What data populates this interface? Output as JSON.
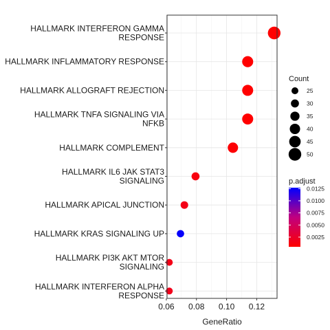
{
  "chart_data": {
    "type": "scatter",
    "xlabel": "GeneRatio",
    "x_ticks": [
      0.06,
      0.08,
      0.1,
      0.12
    ],
    "x_tick_labels": [
      "0.06",
      "0.08",
      "0.10",
      "0.12"
    ],
    "xlim": [
      0.0605,
      0.1335
    ],
    "grid": true,
    "legend_position": "right",
    "points": [
      {
        "term": "HALLMARK INTERFERON GAMMA\nRESPONSE",
        "gene_ratio": 0.1316,
        "count": 50,
        "p_adjust": 0.0005
      },
      {
        "term": "HALLMARK INFLAMMATORY RESPONSE",
        "gene_ratio": 0.114,
        "count": 43,
        "p_adjust": 0.0005
      },
      {
        "term": "HALLMARK ALLOGRAFT REJECTION",
        "gene_ratio": 0.114,
        "count": 43,
        "p_adjust": 0.0005
      },
      {
        "term": "HALLMARK TNFA SIGNALING VIA\nNFKB",
        "gene_ratio": 0.114,
        "count": 43,
        "p_adjust": 0.0005
      },
      {
        "term": "HALLMARK COMPLEMENT",
        "gene_ratio": 0.1042,
        "count": 40,
        "p_adjust": 0.0007
      },
      {
        "term": "HALLMARK IL6 JAK STAT3\nSIGNALING",
        "gene_ratio": 0.0794,
        "count": 30,
        "p_adjust": 0.0012
      },
      {
        "term": "HALLMARK APICAL JUNCTION",
        "gene_ratio": 0.072,
        "count": 28,
        "p_adjust": 0.0016
      },
      {
        "term": "HALLMARK KRAS SIGNALING UP",
        "gene_ratio": 0.0694,
        "count": 27,
        "p_adjust": 0.0125
      },
      {
        "term": "HALLMARK PI3K AKT MTOR\nSIGNALING",
        "gene_ratio": 0.062,
        "count": 24,
        "p_adjust": 0.0016
      },
      {
        "term": "HALLMARK INTERFERON ALPHA\nRESPONSE",
        "gene_ratio": 0.062,
        "count": 24,
        "p_adjust": 0.0018
      }
    ],
    "size_legend": {
      "title": "Count",
      "values": [
        25,
        30,
        35,
        40,
        45,
        50
      ]
    },
    "color_legend": {
      "title": "p.adjust",
      "min": 0.0005,
      "max": 0.0127,
      "ticks": [
        0.0125,
        0.01,
        0.0075,
        0.005,
        0.0025
      ],
      "tick_labels": [
        "0.0125",
        "0.0100",
        "0.0075",
        "0.0050",
        "0.0025"
      ],
      "low_color": "#ff0000",
      "high_color": "#0000ff"
    }
  }
}
